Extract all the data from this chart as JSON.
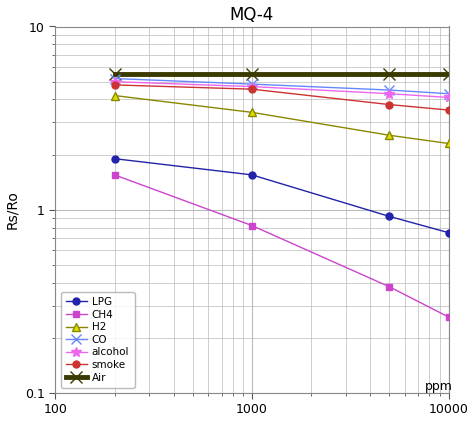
{
  "title": "MQ-4",
  "xlabel": "ppm",
  "ylabel": "Rs/Ro",
  "xlim": [
    100,
    10000
  ],
  "ylim": [
    0.1,
    10
  ],
  "series": {
    "LPG": {
      "x": [
        200,
        1000,
        5000,
        10000
      ],
      "y": [
        1.9,
        1.55,
        0.92,
        0.75
      ],
      "color": "#2222AA",
      "marker": "o",
      "markersize": 5,
      "linewidth": 1.0,
      "zorder": 3,
      "markerfacecolor": "#2222AA"
    },
    "CH4": {
      "x": [
        200,
        1000,
        5000,
        10000
      ],
      "y": [
        1.55,
        0.82,
        0.38,
        0.26
      ],
      "color": "#CC44CC",
      "marker": "s",
      "markersize": 5,
      "linewidth": 1.0,
      "zorder": 3,
      "markerfacecolor": "#CC44CC"
    },
    "H2": {
      "x": [
        200,
        1000,
        5000,
        10000
      ],
      "y": [
        4.2,
        3.4,
        2.55,
        2.3
      ],
      "color": "#888800",
      "marker": "^",
      "markersize": 6,
      "linewidth": 1.0,
      "zorder": 3,
      "markerfacecolor": "#DDDD00"
    },
    "CO": {
      "x": [
        200,
        1000,
        5000,
        10000
      ],
      "y": [
        5.2,
        4.85,
        4.5,
        4.3
      ],
      "color": "#6688FF",
      "marker": "x",
      "markersize": 7,
      "linewidth": 1.0,
      "zorder": 3,
      "markerfacecolor": "#6688FF"
    },
    "alcohol": {
      "x": [
        200,
        1000,
        5000,
        10000
      ],
      "y": [
        5.0,
        4.7,
        4.3,
        4.1
      ],
      "color": "#EE66EE",
      "marker": "*",
      "markersize": 7,
      "linewidth": 1.0,
      "zorder": 3,
      "markerfacecolor": "#EE66EE"
    },
    "smoke": {
      "x": [
        200,
        1000,
        5000,
        10000
      ],
      "y": [
        4.8,
        4.55,
        3.75,
        3.5
      ],
      "color": "#CC3333",
      "marker": "o",
      "markersize": 5,
      "linewidth": 1.0,
      "zorder": 3,
      "markerfacecolor": "#CC3333"
    },
    "Air": {
      "x": [
        200,
        1000,
        5000,
        10000
      ],
      "y": [
        5.5,
        5.5,
        5.5,
        5.5
      ],
      "color": "#3A3A00",
      "marker": "x",
      "markersize": 9,
      "linewidth": 3.5,
      "zorder": 2,
      "markerfacecolor": "#3A3A00"
    }
  },
  "bg_color": "#ffffff",
  "grid_color": "#bbbbbb",
  "legend_order": [
    "LPG",
    "CH4",
    "H2",
    "CO",
    "alcohol",
    "smoke",
    "Air"
  ]
}
